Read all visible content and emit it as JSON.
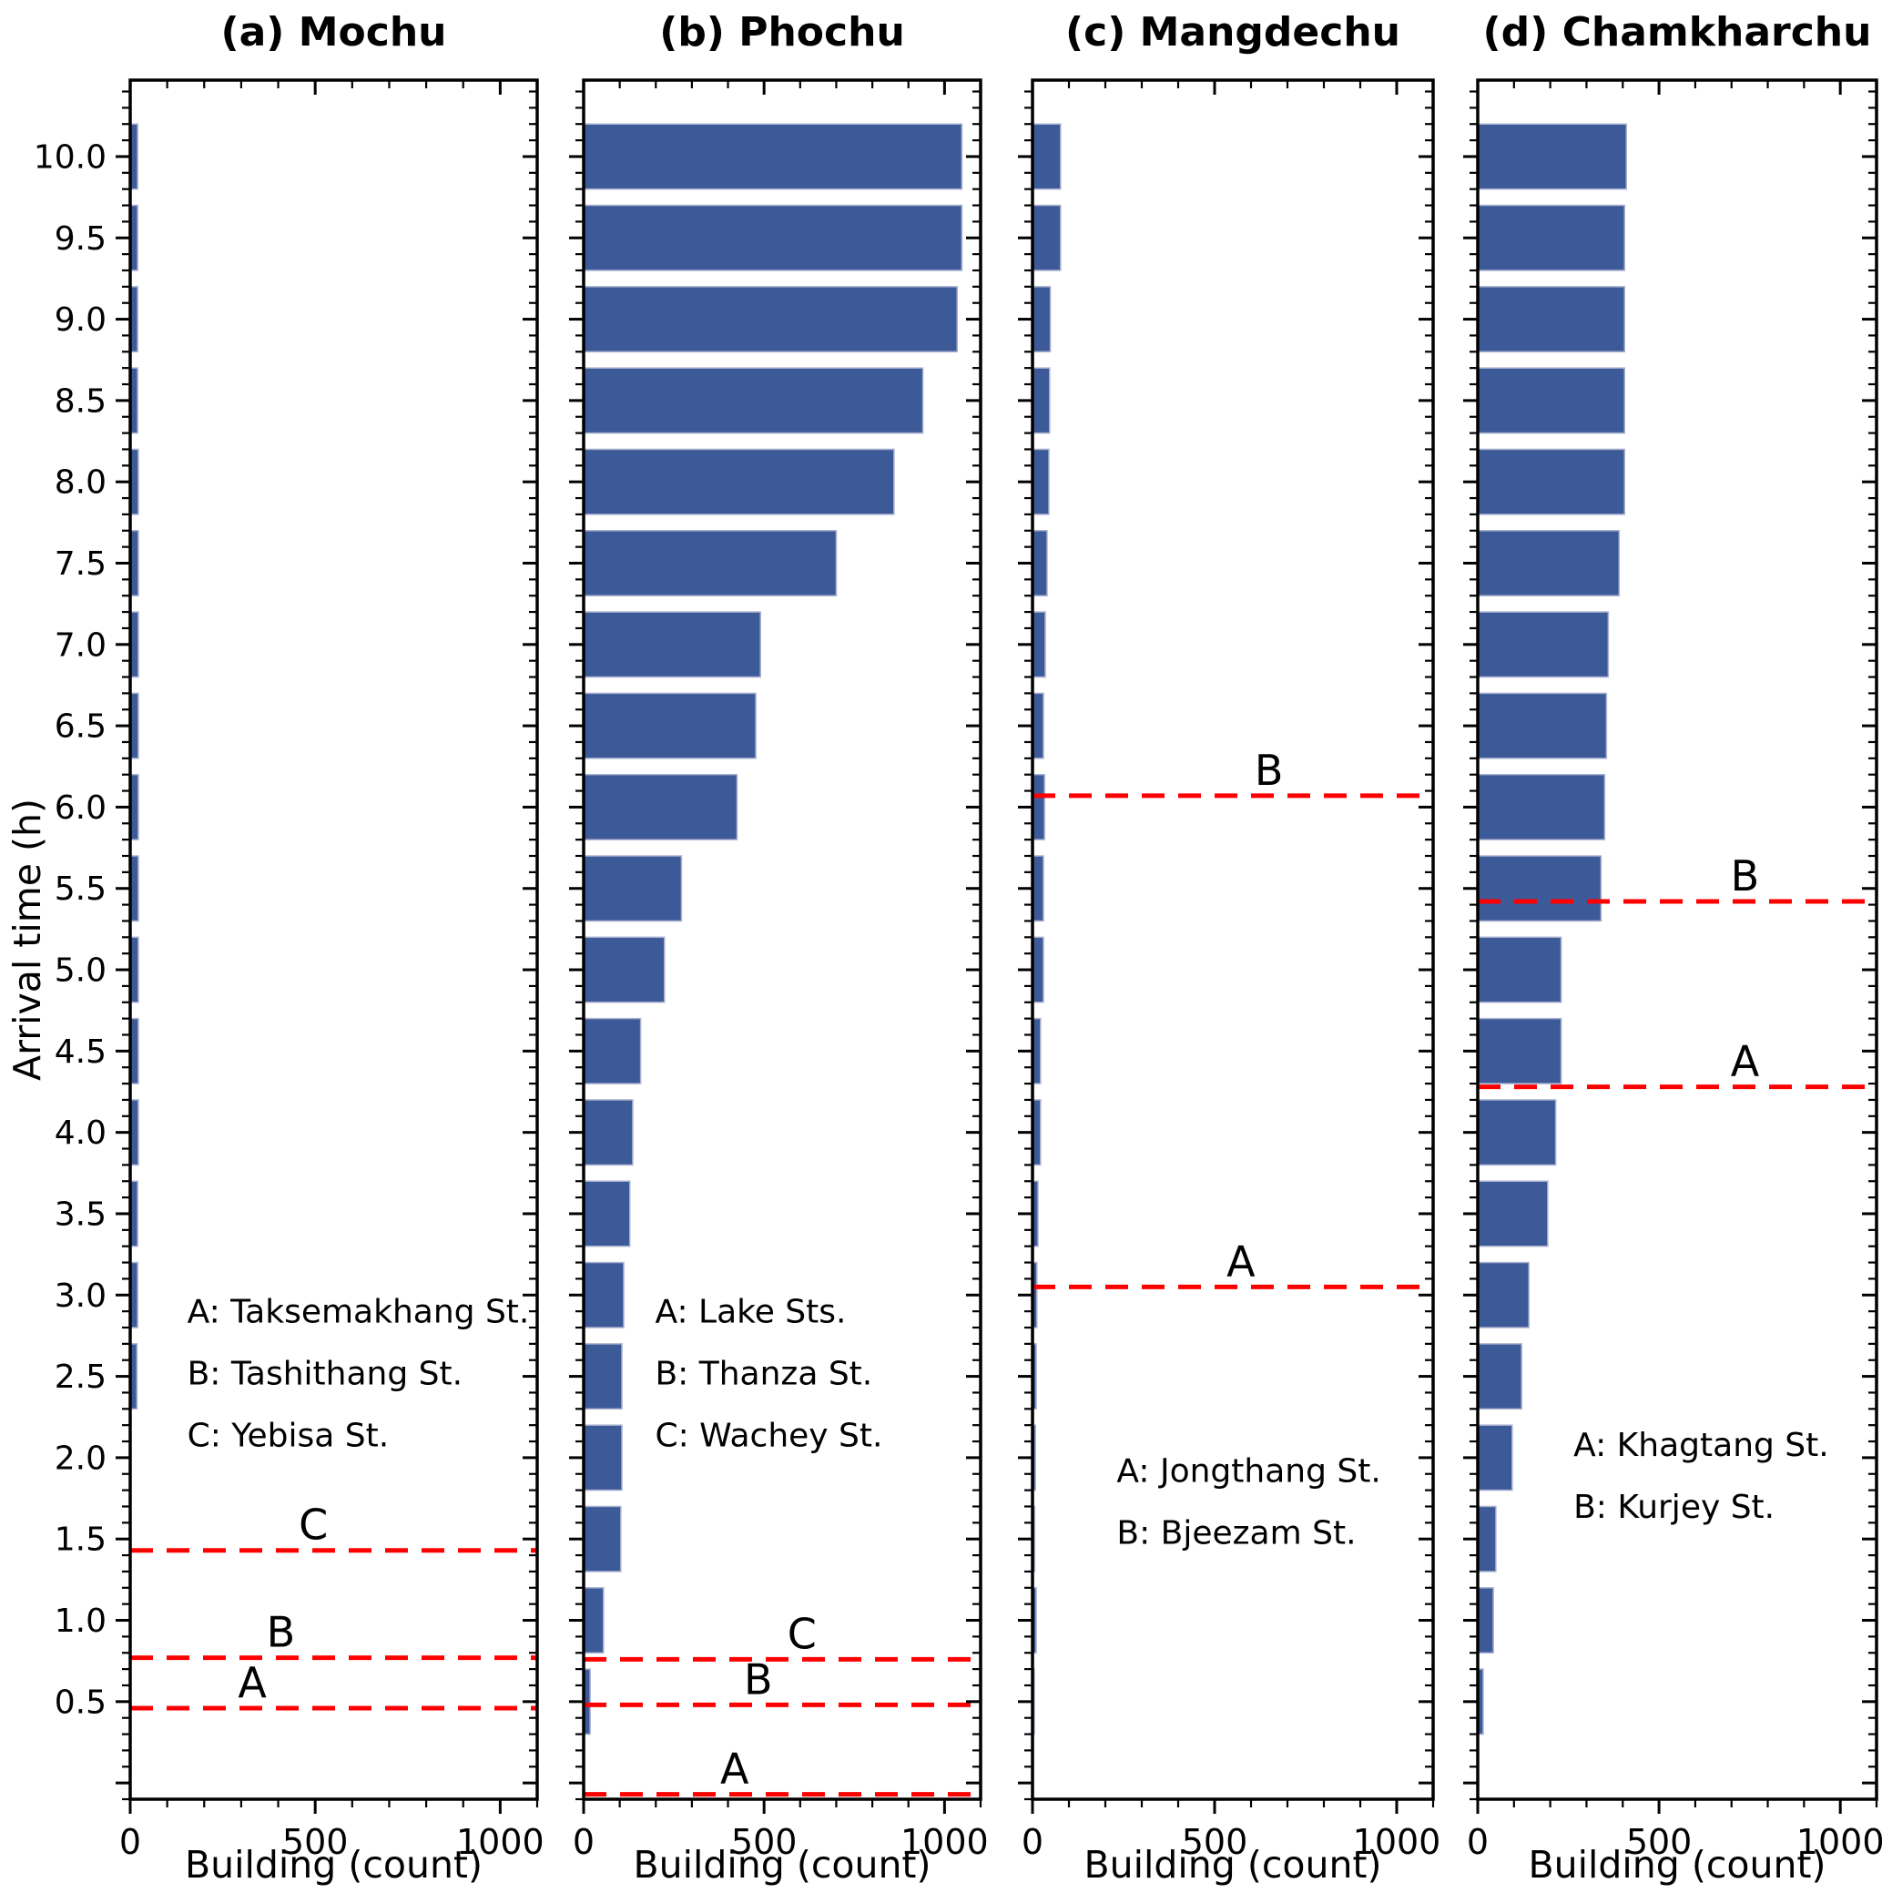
{
  "figure": {
    "ylabel": "Arrival time (h)",
    "xlabel": "Building (count)",
    "colors": {
      "bar_fill": "#3D5A98",
      "bar_edge": "#A9B1CF",
      "ref_line": "#FF0000",
      "axis": "#000000",
      "background": "#FFFFFF"
    }
  },
  "chart_data": [
    {
      "id": "a",
      "type": "bar",
      "orientation": "horizontal",
      "title": "(a) Mochu",
      "xlabel": "Building (count)",
      "ylabel": "Arrival time (h)",
      "xlim": [
        0,
        1100
      ],
      "ylim": [
        -0.1,
        10.47
      ],
      "xticks": [
        0,
        500,
        1000
      ],
      "x_minor_step": 100,
      "ytick_step": 0.5,
      "y_minor_step": 0.1,
      "bar_height": 0.4,
      "categories": [
        0.5,
        1.0,
        1.5,
        2.0,
        2.5,
        3.0,
        3.5,
        4.0,
        4.5,
        5.0,
        5.5,
        6.0,
        6.5,
        7.0,
        7.5,
        8.0,
        8.5,
        9.0,
        9.5,
        10.0
      ],
      "values": [
        0,
        0,
        0,
        0,
        18,
        20,
        20,
        22,
        22,
        22,
        22,
        22,
        22,
        22,
        22,
        22,
        20,
        20,
        20,
        20
      ],
      "ref_lines": [
        {
          "label": "A",
          "y": 0.46,
          "label_x": 0.3
        },
        {
          "label": "B",
          "y": 0.77,
          "label_x": 0.37
        },
        {
          "label": "C",
          "y": 1.43,
          "label_x": 0.45
        }
      ],
      "legend": {
        "x": 0.14,
        "ys": [
          2.83,
          2.45,
          2.07
        ],
        "lines": [
          "A: Taksemakhang St.",
          "B: Tashithang St.",
          "C: Yebisa St."
        ]
      }
    },
    {
      "id": "b",
      "type": "bar",
      "orientation": "horizontal",
      "title": "(b) Phochu",
      "xlabel": "Building (count)",
      "ylabel": "Arrival time (h)",
      "xlim": [
        0,
        1100
      ],
      "ylim": [
        -0.1,
        10.47
      ],
      "xticks": [
        0,
        500,
        1000
      ],
      "x_minor_step": 100,
      "ytick_step": 0.5,
      "y_minor_step": 0.1,
      "bar_height": 0.4,
      "categories": [
        0.5,
        1.0,
        1.5,
        2.0,
        2.5,
        3.0,
        3.5,
        4.0,
        4.5,
        5.0,
        5.5,
        6.0,
        6.5,
        7.0,
        7.5,
        8.0,
        8.5,
        9.0,
        9.5,
        10.0
      ],
      "values": [
        18,
        55,
        103,
        106,
        106,
        111,
        128,
        136,
        158,
        224,
        271,
        425,
        477,
        490,
        700,
        860,
        940,
        1035,
        1048,
        1048
      ],
      "ref_lines": [
        {
          "label": "A",
          "y": -0.07,
          "label_x": 0.38
        },
        {
          "label": "B",
          "y": 0.48,
          "label_x": 0.44
        },
        {
          "label": "C",
          "y": 0.76,
          "label_x": 0.55
        }
      ],
      "legend": {
        "x": 0.18,
        "ys": [
          2.83,
          2.45,
          2.07
        ],
        "lines": [
          "A: Lake Sts.",
          "B: Thanza St.",
          "C: Wachey St."
        ]
      }
    },
    {
      "id": "c",
      "type": "bar",
      "orientation": "horizontal",
      "title": "(c) Mangdechu",
      "xlabel": "Building (count)",
      "ylabel": "Arrival time (h)",
      "xlim": [
        0,
        1100
      ],
      "ylim": [
        -0.1,
        10.47
      ],
      "xticks": [
        0,
        500,
        1000
      ],
      "x_minor_step": 100,
      "ytick_step": 0.5,
      "y_minor_step": 0.1,
      "bar_height": 0.4,
      "categories": [
        0.5,
        1.0,
        1.5,
        2.0,
        2.5,
        3.0,
        3.5,
        4.0,
        4.5,
        5.0,
        5.5,
        6.0,
        6.5,
        7.0,
        7.5,
        8.0,
        8.5,
        9.0,
        9.5,
        10.0
      ],
      "values": [
        5,
        10,
        6,
        8,
        10,
        12,
        15,
        22,
        22,
        30,
        30,
        33,
        30,
        35,
        40,
        45,
        47,
        49,
        77,
        77
      ],
      "ref_lines": [
        {
          "label": "A",
          "y": 3.05,
          "label_x": 0.52
        },
        {
          "label": "B",
          "y": 6.07,
          "label_x": 0.59
        }
      ],
      "legend": {
        "x": 0.21,
        "ys": [
          1.85,
          1.47
        ],
        "lines": [
          "A: Jongthang St.",
          "B: Bjeezam St."
        ]
      }
    },
    {
      "id": "d",
      "type": "bar",
      "orientation": "horizontal",
      "title": "(d) Chamkharchu",
      "xlabel": "Building (count)",
      "ylabel": "Arrival time (h)",
      "xlim": [
        0,
        1100
      ],
      "ylim": [
        -0.1,
        10.47
      ],
      "xticks": [
        0,
        500,
        1000
      ],
      "x_minor_step": 100,
      "ytick_step": 0.5,
      "y_minor_step": 0.1,
      "bar_height": 0.4,
      "categories": [
        0.5,
        1.0,
        1.5,
        2.0,
        2.5,
        3.0,
        3.5,
        4.0,
        4.5,
        5.0,
        5.5,
        6.0,
        6.5,
        7.0,
        7.5,
        8.0,
        8.5,
        9.0,
        9.5,
        10.0
      ],
      "values": [
        15,
        43,
        50,
        95,
        121,
        141,
        193,
        215,
        230,
        230,
        340,
        350,
        355,
        360,
        390,
        405,
        405,
        405,
        405,
        410
      ],
      "ref_lines": [
        {
          "label": "A",
          "y": 4.28,
          "label_x": 0.67
        },
        {
          "label": "B",
          "y": 5.42,
          "label_x": 0.67
        }
      ],
      "legend": {
        "x": 0.24,
        "ys": [
          2.01,
          1.63
        ],
        "lines": [
          "A: Khagtang St.",
          "B: Kurjey St."
        ]
      }
    }
  ]
}
